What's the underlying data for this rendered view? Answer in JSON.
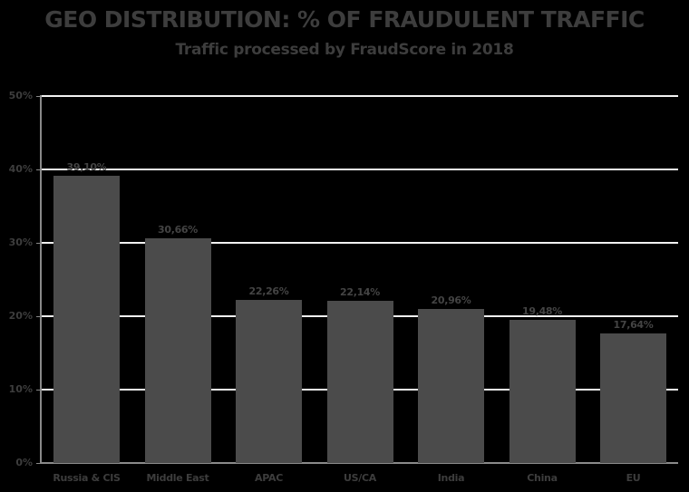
{
  "chart_data": {
    "type": "bar",
    "title": "GEO DISTRIBUTION: % OF FRAUDULENT TRAFFIC",
    "subtitle": "Traffic processed by FraudScore in 2018",
    "xlabel": "",
    "ylabel": "",
    "categories": [
      "Russia & CIS",
      "Middle East",
      "APAC",
      "US/CA",
      "India",
      "China",
      "EU"
    ],
    "values": [
      39.1,
      30.66,
      22.26,
      22.14,
      20.96,
      19.48,
      17.64
    ],
    "value_labels": [
      "39,10%",
      "30,66%",
      "22,26%",
      "22,14%",
      "20,96%",
      "19,48%",
      "17,64%"
    ],
    "ylim": [
      0,
      50
    ],
    "yticks": [
      "0%",
      "10%",
      "20%",
      "30%",
      "40%",
      "50%"
    ],
    "grid": true,
    "legend": "none",
    "colors": {
      "bar": "#4b4b4b",
      "background": "#000000",
      "grid": "#f2f2f2",
      "text": "#3d3d3d"
    }
  }
}
